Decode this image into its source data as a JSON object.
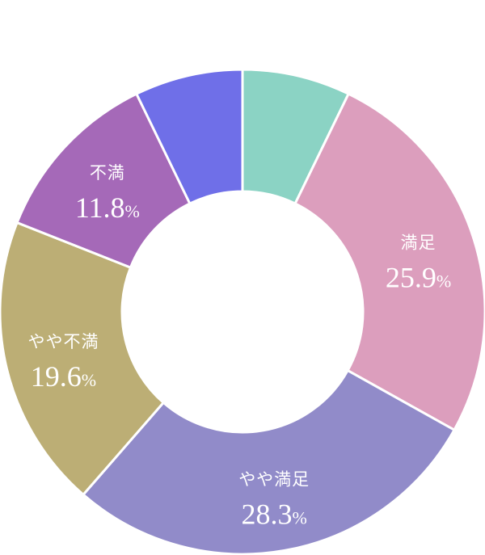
{
  "chart_data": {
    "type": "pie",
    "variant": "donut",
    "title": "",
    "slices": [
      {
        "name": "",
        "value": 7.2,
        "value_label": "",
        "color": "#8bd3c4"
      },
      {
        "name": "満足",
        "value": 25.9,
        "value_label": "25.9",
        "color": "#dc9ebd"
      },
      {
        "name": "やや満足",
        "value": 28.3,
        "value_label": "28.3",
        "color": "#918bc9"
      },
      {
        "name": "やや不満",
        "value": 19.6,
        "value_label": "19.6",
        "color": "#bcae75"
      },
      {
        "name": "不満",
        "value": 11.8,
        "value_label": "11.8",
        "color": "#a569b8"
      },
      {
        "name": "",
        "value": 7.2,
        "value_label": "",
        "color": "#6f6fe8"
      }
    ],
    "unit": "%",
    "start": "top",
    "direction": "clockwise",
    "separator_color": "#ffffff"
  }
}
